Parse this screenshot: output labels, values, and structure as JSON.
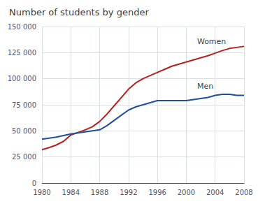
{
  "chart_data": {
    "type": "line",
    "title": "Number of students by gender",
    "x": [
      1980,
      1981,
      1982,
      1983,
      1984,
      1985,
      1986,
      1987,
      1988,
      1989,
      1990,
      1991,
      1992,
      1993,
      1994,
      1995,
      1996,
      1997,
      1998,
      1999,
      2000,
      2001,
      2002,
      2003,
      2004,
      2005,
      2006,
      2007,
      2008
    ],
    "series": [
      {
        "color": "#b22222",
        "values": [
          32000,
          34000,
          36500,
          40000,
          46000,
          48500,
          51000,
          54000,
          59000,
          66000,
          74000,
          82000,
          90000,
          96000,
          100000,
          103000,
          106000,
          109000,
          112000,
          114000,
          116000,
          118000,
          120000,
          122000,
          124500,
          127000,
          129000,
          130000,
          131000
        ]
      },
      {
        "color": "#1f4e9c",
        "values": [
          42000,
          43000,
          44000,
          45500,
          47000,
          48000,
          49000,
          50000,
          51000,
          55000,
          60000,
          65000,
          70000,
          73000,
          75000,
          77000,
          79000,
          79000,
          79000,
          79000,
          79000,
          80000,
          81000,
          82000,
          84000,
          85000,
          85000,
          84000,
          84000
        ]
      }
    ],
    "annotations": [
      {
        "text": "Women",
        "x": 2001.5,
        "y": 132000
      },
      {
        "text": "Men",
        "x": 2001.5,
        "y": 89000
      }
    ],
    "xlim": [
      1980,
      2008
    ],
    "xticks": [
      1980,
      1984,
      1988,
      1992,
      1996,
      2000,
      2004,
      2008
    ],
    "ylim": [
      0,
      150000
    ],
    "yticks": [
      0,
      {
        "value": 25000,
        "label": "25 000"
      },
      {
        "value": 50000,
        "label": "50 000"
      },
      {
        "value": 75000,
        "label": "75 000"
      },
      {
        "value": 100000,
        "label": "100 000"
      },
      {
        "value": 125000,
        "label": "125 000"
      },
      {
        "value": 150000,
        "label": "150 000"
      }
    ],
    "grid": true
  }
}
